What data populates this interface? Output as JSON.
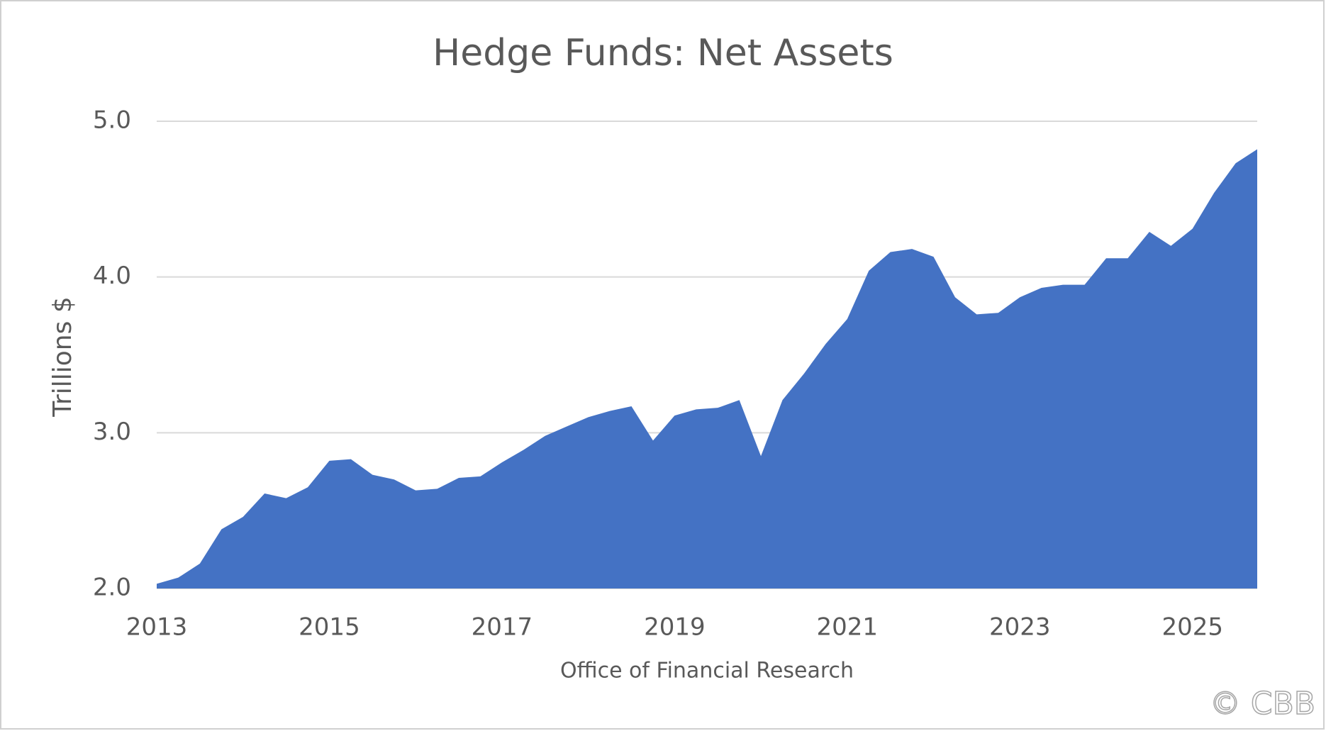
{
  "chart_data": {
    "type": "area",
    "title": "Hedge Funds: Net Assets",
    "ylabel": "Trillions $",
    "xlabel": "Office of Financial Research",
    "watermark": "© CBB",
    "x": [
      2013,
      2013.25,
      2013.5,
      2013.75,
      2014,
      2014.25,
      2014.5,
      2014.75,
      2015,
      2015.25,
      2015.5,
      2015.75,
      2016,
      2016.25,
      2016.5,
      2016.75,
      2017,
      2017.25,
      2017.5,
      2017.75,
      2018,
      2018.25,
      2018.5,
      2018.75,
      2019,
      2019.25,
      2019.5,
      2019.75,
      2020,
      2020.25,
      2020.5,
      2020.75,
      2021,
      2021.25,
      2021.5,
      2021.75,
      2022,
      2022.25,
      2022.5,
      2022.75,
      2023,
      2023.25,
      2023.5,
      2023.75,
      2024,
      2024.25,
      2024.5,
      2024.75,
      2025,
      2025.25,
      2025.5,
      2025.75
    ],
    "values": [
      2.03,
      2.07,
      2.16,
      2.38,
      2.46,
      2.61,
      2.58,
      2.65,
      2.82,
      2.83,
      2.73,
      2.7,
      2.63,
      2.64,
      2.71,
      2.72,
      2.81,
      2.89,
      2.98,
      3.04,
      3.1,
      3.14,
      3.17,
      2.95,
      3.11,
      3.15,
      3.16,
      3.21,
      2.85,
      3.21,
      3.38,
      3.57,
      3.73,
      4.04,
      4.16,
      4.18,
      4.13,
      3.87,
      3.76,
      3.77,
      3.87,
      3.93,
      3.95,
      3.95,
      4.12,
      4.12,
      4.29,
      4.2,
      4.31,
      4.54,
      4.73,
      4.82
    ],
    "color": "#4472c4",
    "xlim": [
      2013,
      2025.75
    ],
    "xticks": [
      2013,
      2015,
      2017,
      2019,
      2021,
      2023,
      2025
    ],
    "ylim": [
      2,
      5
    ],
    "yticks": [
      {
        "value": 2,
        "label": "2.0"
      },
      {
        "value": 3,
        "label": "3.0"
      },
      {
        "value": 4,
        "label": "4.0"
      },
      {
        "value": 5,
        "label": "5.0"
      }
    ],
    "grid": true
  }
}
